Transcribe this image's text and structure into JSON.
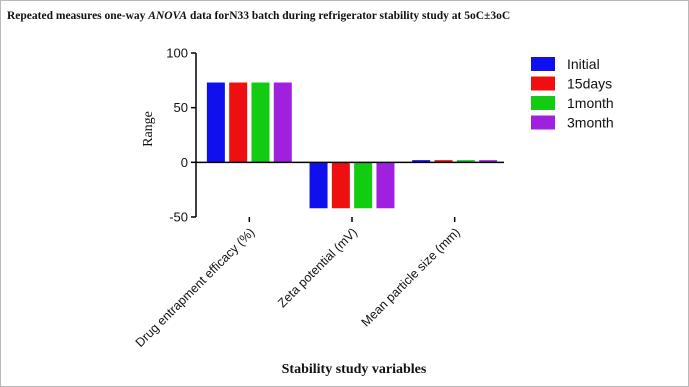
{
  "chart_data": {
    "type": "bar",
    "title_parts": [
      {
        "text": "Repeated measures one-way ",
        "italic": false
      },
      {
        "text": "ANOVA",
        "italic": true
      },
      {
        "text": " data forN33 batch during refrigerator stability study at 5oC±3oC",
        "italic": false
      }
    ],
    "xlabel": "Stability study variables",
    "ylabel": "Range",
    "ylim": [
      -50,
      100
    ],
    "yticks": [
      -50,
      0,
      50,
      100
    ],
    "categories": [
      "Drug entrapment efficacy (%)",
      "Zeta potential (mV)",
      "Mean particle size (mm)"
    ],
    "series": [
      {
        "name": "Initial",
        "color": "#1010ee",
        "values": [
          73,
          -42,
          2
        ]
      },
      {
        "name": "15days",
        "color": "#ee1010",
        "values": [
          73,
          -42,
          2
        ]
      },
      {
        "name": "1month",
        "color": "#11cc11",
        "values": [
          73,
          -42,
          2
        ]
      },
      {
        "name": "3month",
        "color": "#a020e0",
        "values": [
          73,
          -42,
          2
        ]
      }
    ],
    "legend_position": "top-right",
    "grid": false
  }
}
